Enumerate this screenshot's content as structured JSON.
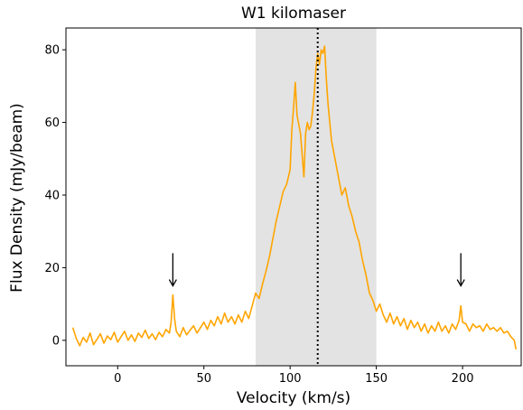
{
  "chart_data": {
    "type": "line",
    "title": "W1 kilomaser",
    "xlabel": "Velocity (km/s)",
    "ylabel": "Flux Density (mJy/beam)",
    "xlim": [
      -30,
      234
    ],
    "ylim": [
      -7,
      86
    ],
    "xticks": [
      0,
      50,
      100,
      150,
      200
    ],
    "yticks": [
      0,
      20,
      40,
      60,
      80
    ],
    "grid": false,
    "shaded_region": {
      "x_start": 80,
      "x_end": 150,
      "color": "#e3e3e3"
    },
    "vertical_line": {
      "x": 116,
      "style": "dotted",
      "color": "#000000"
    },
    "arrows": [
      {
        "x": 32,
        "y_top": 24,
        "y_bottom": 15
      },
      {
        "x": 199,
        "y_top": 24,
        "y_bottom": 15
      }
    ],
    "series": [
      {
        "color": "#ffa500",
        "points": [
          [
            -26,
            3.5
          ],
          [
            -24,
            0.5
          ],
          [
            -22,
            -1.5
          ],
          [
            -20,
            0.8
          ],
          [
            -18,
            -0.5
          ],
          [
            -16,
            2.0
          ],
          [
            -14,
            -1.2
          ],
          [
            -12,
            0.3
          ],
          [
            -10,
            1.8
          ],
          [
            -8,
            -0.8
          ],
          [
            -6,
            1.2
          ],
          [
            -4,
            0.2
          ],
          [
            -2,
            2.2
          ],
          [
            0,
            -0.5
          ],
          [
            2,
            1.0
          ],
          [
            4,
            2.5
          ],
          [
            6,
            0.0
          ],
          [
            8,
            1.5
          ],
          [
            10,
            -0.3
          ],
          [
            12,
            2.0
          ],
          [
            14,
            0.8
          ],
          [
            16,
            2.8
          ],
          [
            18,
            0.5
          ],
          [
            20,
            1.8
          ],
          [
            22,
            0.2
          ],
          [
            24,
            2.2
          ],
          [
            26,
            1.0
          ],
          [
            28,
            3.0
          ],
          [
            30,
            2.0
          ],
          [
            31,
            5.0
          ],
          [
            32,
            12.5
          ],
          [
            33,
            6.0
          ],
          [
            34,
            2.5
          ],
          [
            36,
            1.0
          ],
          [
            38,
            3.5
          ],
          [
            40,
            1.5
          ],
          [
            42,
            2.8
          ],
          [
            44,
            4.0
          ],
          [
            46,
            2.0
          ],
          [
            48,
            3.5
          ],
          [
            50,
            5.0
          ],
          [
            52,
            3.0
          ],
          [
            54,
            5.5
          ],
          [
            56,
            4.0
          ],
          [
            58,
            6.5
          ],
          [
            60,
            4.5
          ],
          [
            62,
            7.5
          ],
          [
            64,
            5.0
          ],
          [
            66,
            6.5
          ],
          [
            68,
            4.5
          ],
          [
            70,
            7.0
          ],
          [
            72,
            5.0
          ],
          [
            74,
            8.0
          ],
          [
            76,
            6.0
          ],
          [
            78,
            9.5
          ],
          [
            80,
            13.0
          ],
          [
            82,
            11.5
          ],
          [
            84,
            15.5
          ],
          [
            86,
            19.0
          ],
          [
            88,
            23.0
          ],
          [
            90,
            28.0
          ],
          [
            92,
            33.0
          ],
          [
            94,
            37.0
          ],
          [
            96,
            41.0
          ],
          [
            98,
            43.0
          ],
          [
            100,
            47.0
          ],
          [
            101,
            58.0
          ],
          [
            102,
            64.0
          ],
          [
            103,
            71.0
          ],
          [
            104,
            62.0
          ],
          [
            106,
            57.0
          ],
          [
            108,
            45.0
          ],
          [
            109,
            57.0
          ],
          [
            110,
            60.0
          ],
          [
            111,
            58.0
          ],
          [
            112,
            59.0
          ],
          [
            113,
            63.0
          ],
          [
            114,
            68.0
          ],
          [
            115,
            75.0
          ],
          [
            116,
            79.0
          ],
          [
            117,
            76.0
          ],
          [
            118,
            80.0
          ],
          [
            119,
            79.0
          ],
          [
            120,
            81.0
          ],
          [
            121,
            72.0
          ],
          [
            122,
            65.0
          ],
          [
            124,
            55.0
          ],
          [
            126,
            50.0
          ],
          [
            128,
            45.0
          ],
          [
            130,
            40.0
          ],
          [
            132,
            42.0
          ],
          [
            134,
            37.0
          ],
          [
            136,
            34.0
          ],
          [
            138,
            30.0
          ],
          [
            140,
            27.0
          ],
          [
            142,
            22.0
          ],
          [
            144,
            18.0
          ],
          [
            146,
            13.0
          ],
          [
            148,
            11.0
          ],
          [
            150,
            8.0
          ],
          [
            152,
            10.0
          ],
          [
            154,
            7.0
          ],
          [
            156,
            5.0
          ],
          [
            158,
            7.5
          ],
          [
            160,
            4.5
          ],
          [
            162,
            6.5
          ],
          [
            164,
            4.0
          ],
          [
            166,
            6.0
          ],
          [
            168,
            3.0
          ],
          [
            170,
            5.5
          ],
          [
            172,
            3.5
          ],
          [
            174,
            5.0
          ],
          [
            176,
            2.5
          ],
          [
            178,
            4.5
          ],
          [
            180,
            2.0
          ],
          [
            182,
            4.0
          ],
          [
            184,
            2.5
          ],
          [
            186,
            5.0
          ],
          [
            188,
            2.5
          ],
          [
            190,
            4.0
          ],
          [
            192,
            2.0
          ],
          [
            194,
            4.5
          ],
          [
            196,
            3.0
          ],
          [
            198,
            5.5
          ],
          [
            199,
            9.5
          ],
          [
            200,
            5.0
          ],
          [
            202,
            4.5
          ],
          [
            204,
            2.5
          ],
          [
            206,
            4.5
          ],
          [
            208,
            3.5
          ],
          [
            210,
            4.0
          ],
          [
            212,
            2.5
          ],
          [
            214,
            4.5
          ],
          [
            216,
            3.0
          ],
          [
            218,
            3.5
          ],
          [
            220,
            2.5
          ],
          [
            222,
            3.5
          ],
          [
            224,
            2.0
          ],
          [
            226,
            2.5
          ],
          [
            228,
            1.0
          ],
          [
            230,
            0.0
          ],
          [
            231,
            -2.5
          ]
        ]
      }
    ]
  }
}
